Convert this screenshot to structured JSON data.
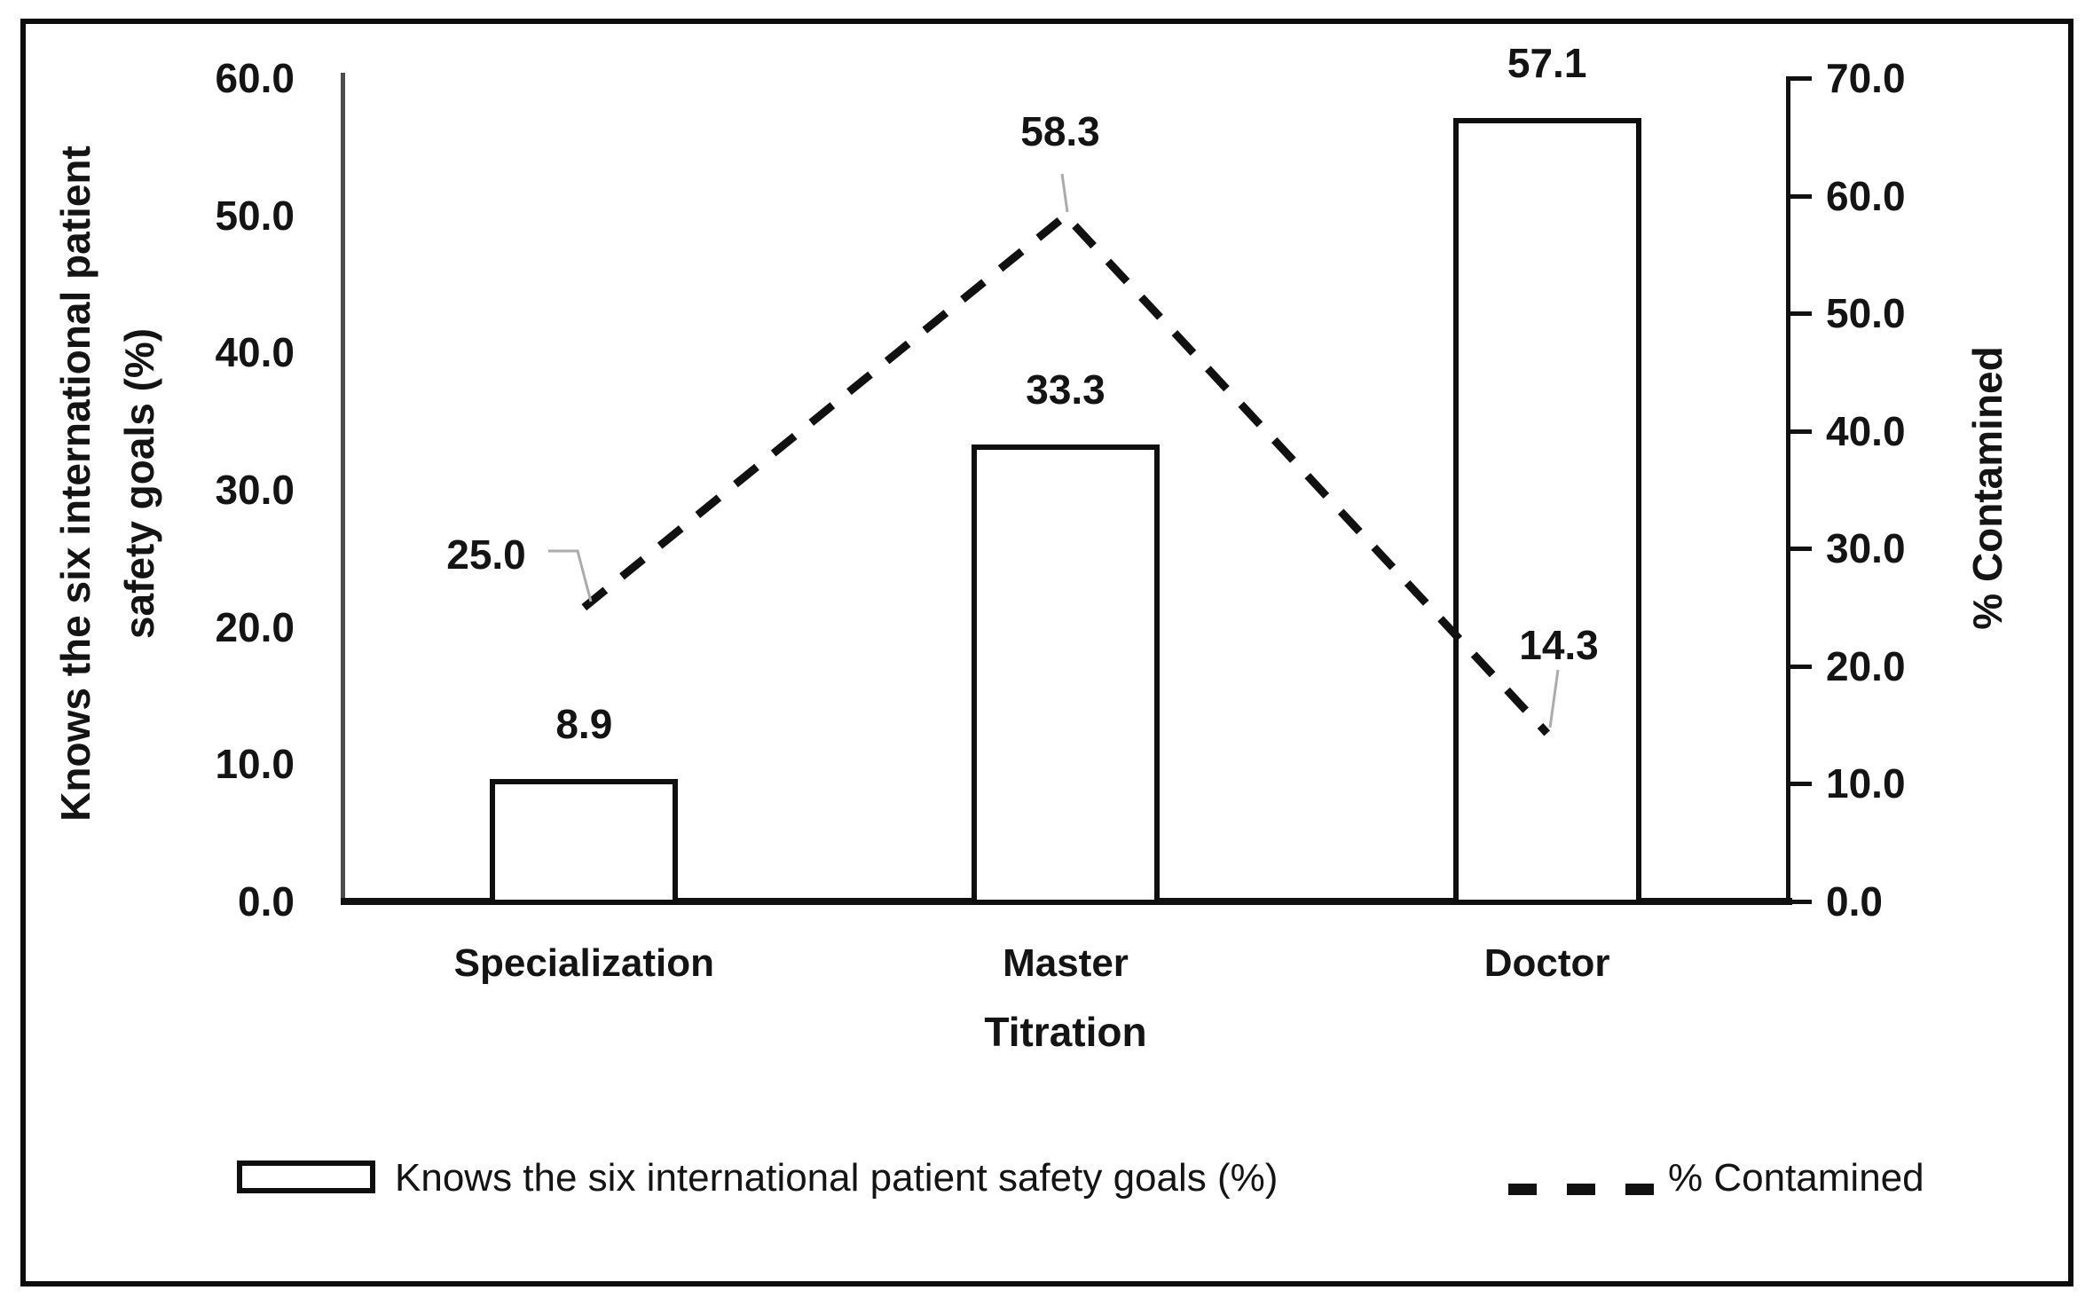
{
  "chart_data": {
    "type": "combo",
    "categories": [
      "Specialization",
      "Master",
      "Doctor"
    ],
    "series": [
      {
        "name": "Knows the six international patient safety goals (%)",
        "type": "bar",
        "axis": "left",
        "values": [
          8.9,
          33.3,
          57.1
        ],
        "fill": "#ffffff",
        "stroke": "#0f0f0f"
      },
      {
        "name": "% Contamined",
        "type": "line",
        "line_style": "dashed",
        "axis": "right",
        "values": [
          25.0,
          58.3,
          14.3
        ],
        "stroke": "#111111"
      }
    ],
    "left_axis": {
      "title_line1": "Knows the six international patient",
      "title_line2": "safety goals (%)",
      "min": 0,
      "max": 60,
      "step": 10,
      "tick_labels": [
        "0.0",
        "10.0",
        "20.0",
        "30.0",
        "40.0",
        "50.0",
        "60.0"
      ]
    },
    "right_axis": {
      "title": "% Contamined",
      "min": 0,
      "max": 70,
      "step": 10,
      "tick_labels": [
        "0.0",
        "10.0",
        "20.0",
        "30.0",
        "40.0",
        "50.0",
        "60.0",
        "70.0"
      ]
    },
    "x_axis": {
      "title": "Titration"
    },
    "data_labels": {
      "bar": [
        "8.9",
        "33.3",
        "57.1"
      ],
      "line": [
        "25.0",
        "58.3",
        "14.3"
      ]
    },
    "legend": {
      "position": "bottom",
      "items": [
        {
          "label": "Knows the six international patient safety goals (%)",
          "marker": "hollow-bar"
        },
        {
          "label": "% Contamined",
          "marker": "dashed-line"
        }
      ]
    },
    "layout_hints": {
      "grid": false,
      "background": "#ffffff",
      "outer_border": "#0d0d0d",
      "leader_line_color": "#ababab"
    }
  }
}
